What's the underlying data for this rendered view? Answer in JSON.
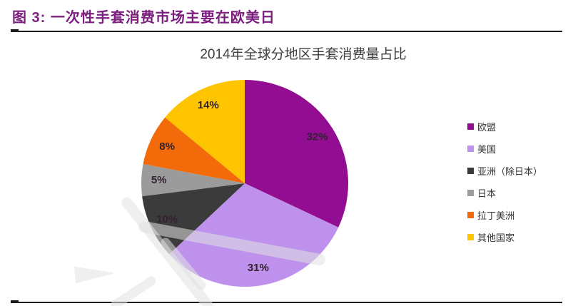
{
  "page": {
    "figure_label": "图 3: 一次性手套消费市场主要在欧美日"
  },
  "colors": {
    "figure_label_text": "#7B1E7E",
    "rule_line": "#1A1A1A",
    "chart_title_text": "#3F3F3F",
    "data_label_text": "#33222F",
    "legend_label_text": "#333333",
    "watermark": "#E2E2E2"
  },
  "chart_data": {
    "type": "pie",
    "title": "2014年全球分地区手套消费量占比",
    "start_angle_deg": 0,
    "direction": "clockwise",
    "legend_position": "right",
    "data_labels": "percent-inside",
    "slices": [
      {
        "label": "欧盟",
        "value_pct": 32,
        "data_label": "32%",
        "color": "#920D92"
      },
      {
        "label": "美国",
        "value_pct": 31,
        "data_label": "31%",
        "color": "#BE92EC"
      },
      {
        "label": "亚洲（除日本）",
        "value_pct": 10,
        "data_label": "10%",
        "color": "#3B3B3B"
      },
      {
        "label": "日本",
        "value_pct": 5,
        "data_label": "5%",
        "color": "#9B9B9B"
      },
      {
        "label": "拉丁美洲",
        "value_pct": 8,
        "data_label": "8%",
        "color": "#F26A0A"
      },
      {
        "label": "其他国家",
        "value_pct": 14,
        "data_label": "14%",
        "color": "#FFC400"
      }
    ]
  }
}
